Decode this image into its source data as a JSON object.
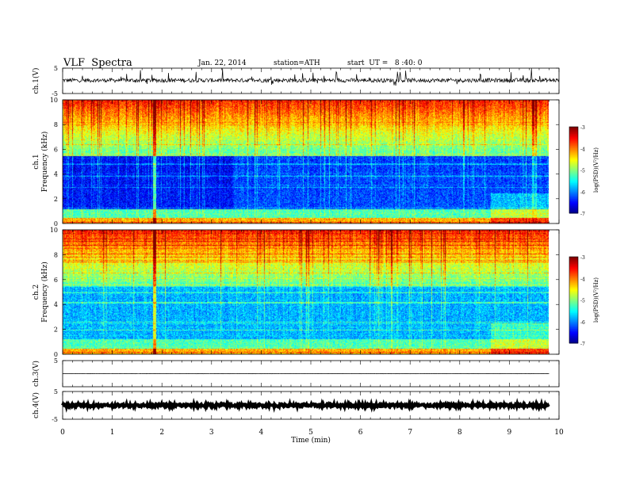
{
  "header": {
    "title": "VLF  Spectra",
    "date": "Jan. 22, 2014",
    "station": "station=ATH",
    "start": "start  UT =   8 :40: 0"
  },
  "colors": {
    "trace": "#000000",
    "frame": "#000000",
    "background": "#ffffff"
  },
  "chart_data": [
    {
      "type": "line",
      "name": "ch1-waveform",
      "ylabel": "ch.1(V)",
      "ylim": [
        -5,
        5
      ],
      "y_ticks": [
        "5",
        "-5"
      ],
      "x_range": [
        0,
        10
      ],
      "baseline": 0.2,
      "noise_amplitude": 0.8
    },
    {
      "type": "heatmap",
      "name": "ch1-spectrogram",
      "ylabel": "Frequency  (kHz)",
      "channel_label": "ch.1",
      "ylim": [
        0,
        10
      ],
      "y_ticks": [
        "0",
        "2",
        "4",
        "6",
        "8",
        "10"
      ],
      "x_range": [
        0,
        9.8
      ],
      "colorbar": {
        "label": "log(PSD)(V²/Hz)",
        "range": [
          -7,
          -3
        ],
        "ticks": [
          "-3",
          "-4",
          "-5",
          "-6",
          "-7"
        ]
      }
    },
    {
      "type": "heatmap",
      "name": "ch2-spectrogram",
      "ylabel": "Frequency  (kHz)",
      "channel_label": "ch.2",
      "ylim": [
        0,
        10
      ],
      "y_ticks": [
        "0",
        "2",
        "4",
        "6",
        "8",
        "10"
      ],
      "x_range": [
        0,
        9.8
      ],
      "colorbar": {
        "label": "log(PSD)(V²/Hz)",
        "range": [
          -7,
          -3
        ],
        "ticks": [
          "-3",
          "-4",
          "-5",
          "-6",
          "-7"
        ]
      }
    },
    {
      "type": "line",
      "name": "ch3-waveform",
      "ylabel": "ch.3(V)",
      "ylim": [
        -5,
        5
      ],
      "y_ticks": [
        "5"
      ],
      "x_range": [
        0,
        9.8
      ],
      "baseline": 0.0,
      "noise_amplitude": 0.05
    },
    {
      "type": "line",
      "name": "ch4-waveform",
      "ylabel": "ch.4(V)",
      "ylim": [
        -5,
        5
      ],
      "y_ticks": [
        "5",
        "-5"
      ],
      "x_range": [
        0,
        9.8
      ],
      "baseline": 0.0,
      "noise_amplitude": 0.5
    }
  ],
  "x_axis": {
    "label": "Time  (min)",
    "range": [
      0,
      10
    ],
    "ticks": [
      "0",
      "1",
      "2",
      "3",
      "4",
      "5",
      "6",
      "7",
      "8",
      "9",
      "10"
    ]
  }
}
